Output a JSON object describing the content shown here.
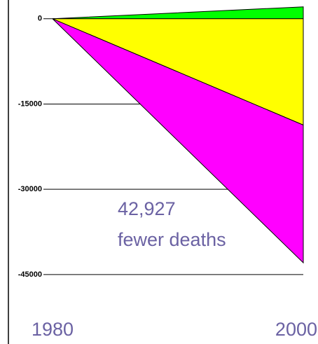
{
  "chart_data": {
    "type": "area",
    "stacked": true,
    "x": [
      1980,
      2000
    ],
    "xlim": [
      1980,
      2000
    ],
    "series": [
      {
        "color": "#00ff00",
        "values": [
          0,
          2100
        ]
      },
      {
        "color": "#ffff00",
        "values": [
          0,
          -18700
        ]
      },
      {
        "color": "#ff00ff",
        "values": [
          0,
          -24227
        ]
      }
    ],
    "ylim": [
      -46000,
      3300
    ],
    "yticks": [
      0,
      -15000,
      -30000,
      -45000
    ],
    "grid": true,
    "annotation": [
      "42,927",
      "fewer deaths"
    ]
  }
}
